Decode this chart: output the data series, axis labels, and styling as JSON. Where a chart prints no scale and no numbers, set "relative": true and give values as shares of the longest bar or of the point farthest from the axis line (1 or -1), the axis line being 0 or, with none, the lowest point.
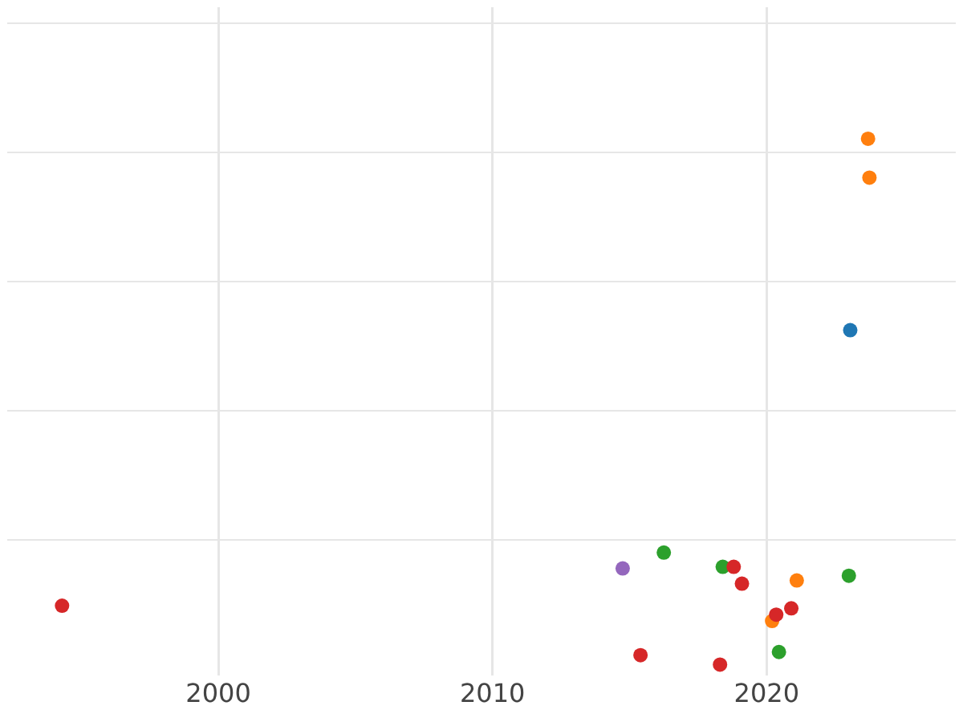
{
  "chart_data": {
    "type": "scatter",
    "relative": true,
    "xlim": [
      1992.3,
      2026.9
    ],
    "xticks": [
      2000,
      2010,
      2020
    ],
    "grid": true,
    "legend": false,
    "marker": "circle",
    "series": [
      {
        "color": "#d62728",
        "x": [
          1994.3,
          2015.4,
          2018.8,
          2019.1,
          2018.3,
          2020.35,
          2020.9
        ],
        "values": [
          0.112,
          0.018,
          0.186,
          0.154,
          0,
          0.095,
          0.107
        ]
      },
      {
        "color": "#9467bd",
        "x": [
          2014.75
        ],
        "values": [
          0.183
        ]
      },
      {
        "color": "#2ca02c",
        "x": [
          2016.25,
          2018.4,
          2020.45,
          2023.0
        ],
        "values": [
          0.213,
          0.186,
          0.024,
          0.169
        ]
      },
      {
        "color": "#ff7f0e",
        "x": [
          2020.2,
          2021.1,
          2023.7,
          2023.75
        ],
        "values": [
          0.083,
          0.16,
          1,
          0.926
        ]
      },
      {
        "color": "#1f77b4",
        "x": [
          2023.05
        ],
        "values": [
          0.636
        ]
      }
    ]
  }
}
